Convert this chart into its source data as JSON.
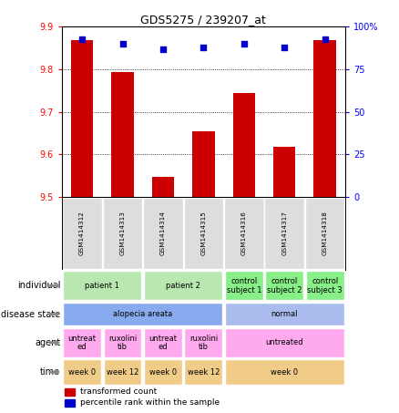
{
  "title": "GDS5275 / 239207_at",
  "samples": [
    "GSM1414312",
    "GSM1414313",
    "GSM1414314",
    "GSM1414315",
    "GSM1414316",
    "GSM1414317",
    "GSM1414318"
  ],
  "transformed_count": [
    9.868,
    9.793,
    9.548,
    9.655,
    9.745,
    9.618,
    9.868
  ],
  "percentile_rank": [
    93,
    90,
    87,
    88,
    90,
    88,
    93
  ],
  "ymin": 9.5,
  "ymax": 9.9,
  "yticks": [
    9.5,
    9.6,
    9.7,
    9.8,
    9.9
  ],
  "y2min": 0,
  "y2max": 100,
  "y2ticks": [
    0,
    25,
    50,
    75,
    100
  ],
  "bar_color": "#cc0000",
  "dot_color": "#0000cc",
  "title_fontsize": 9,
  "legend_bar_label": "transformed count",
  "legend_dot_label": "percentile rank within the sample"
}
